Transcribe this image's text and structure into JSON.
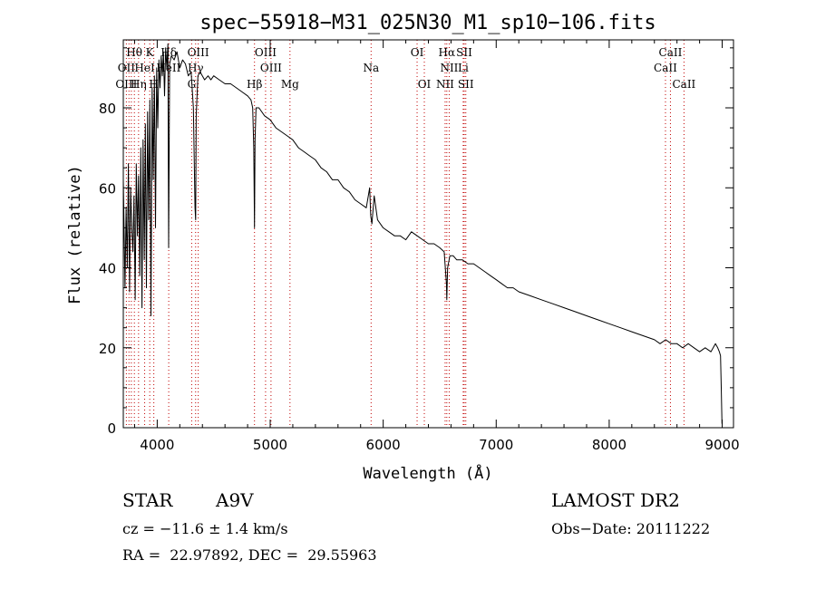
{
  "chart_data": {
    "type": "line",
    "title": "spec−55918−M31_025N30_M1_sp10−106.fits",
    "xlabel": "Wavelength (Å)",
    "ylabel": "Flux (relative)",
    "xlim": [
      3700,
      9100
    ],
    "ylim": [
      0,
      97
    ],
    "xticks": [
      4000,
      5000,
      6000,
      7000,
      8000,
      9000
    ],
    "yticks": [
      0,
      20,
      40,
      60,
      80
    ],
    "grid": false,
    "series": [
      {
        "line_color": "#000000",
        "x": [
          3700,
          3715,
          3725,
          3735,
          3745,
          3755,
          3765,
          3775,
          3785,
          3795,
          3805,
          3815,
          3825,
          3835,
          3845,
          3855,
          3865,
          3875,
          3885,
          3895,
          3905,
          3915,
          3925,
          3935,
          3945,
          3955,
          3965,
          3975,
          3985,
          3995,
          4005,
          4015,
          4025,
          4035,
          4045,
          4055,
          4065,
          4075,
          4085,
          4095,
          4101,
          4110,
          4125,
          4150,
          4175,
          4200,
          4225,
          4250,
          4275,
          4300,
          4320,
          4335,
          4340,
          4345,
          4360,
          4380,
          4400,
          4420,
          4450,
          4475,
          4500,
          4550,
          4600,
          4650,
          4700,
          4750,
          4800,
          4830,
          4845,
          4855,
          4861,
          4866,
          4875,
          4900,
          4950,
          5000,
          5050,
          5100,
          5150,
          5200,
          5250,
          5300,
          5350,
          5400,
          5450,
          5500,
          5550,
          5600,
          5650,
          5700,
          5750,
          5800,
          5850,
          5880,
          5890,
          5900,
          5920,
          5950,
          6000,
          6050,
          6100,
          6150,
          6200,
          6250,
          6300,
          6350,
          6400,
          6450,
          6500,
          6540,
          6560,
          6563,
          6570,
          6590,
          6620,
          6650,
          6700,
          6750,
          6800,
          6850,
          6900,
          6950,
          7000,
          7050,
          7100,
          7150,
          7200,
          7300,
          7400,
          7500,
          7600,
          7700,
          7800,
          7900,
          8000,
          8100,
          8200,
          8300,
          8400,
          8450,
          8500,
          8550,
          8600,
          8650,
          8700,
          8750,
          8800,
          8850,
          8900,
          8940,
          8960,
          8975,
          8985,
          8992,
          8998
        ],
        "y": [
          62,
          35,
          55,
          40,
          66,
          34,
          60,
          50,
          44,
          58,
          32,
          66,
          48,
          63,
          38,
          70,
          30,
          72,
          42,
          76,
          35,
          79,
          52,
          82,
          28,
          85,
          62,
          88,
          50,
          90,
          75,
          92,
          85,
          93,
          88,
          94,
          83,
          95,
          90,
          96,
          45,
          91,
          93,
          92,
          94,
          90,
          92,
          91,
          88,
          89,
          80,
          55,
          52,
          78,
          88,
          89,
          88,
          87,
          88,
          87,
          88,
          87,
          86,
          86,
          85,
          84,
          83,
          82,
          80,
          70,
          50,
          72,
          80,
          80,
          78,
          77,
          75,
          74,
          73,
          72,
          70,
          69,
          68,
          67,
          65,
          64,
          62,
          62,
          60,
          59,
          57,
          56,
          55,
          60,
          53,
          51,
          58,
          52,
          50,
          49,
          48,
          48,
          47,
          49,
          48,
          47,
          46,
          46,
          45,
          44,
          36,
          32,
          40,
          43,
          43,
          42,
          42,
          41,
          41,
          40,
          39,
          38,
          37,
          36,
          35,
          35,
          34,
          33,
          32,
          31,
          30,
          29,
          28,
          27,
          26,
          25,
          24,
          23,
          22,
          21,
          22,
          21,
          21,
          20,
          21,
          20,
          19,
          20,
          19,
          21,
          20,
          19,
          18,
          10,
          1
        ]
      }
    ],
    "annotations": [
      {
        "text": "Hθ",
        "x": 3797,
        "row": 1
      },
      {
        "text": "K",
        "x": 3934,
        "row": 1
      },
      {
        "text": "Hδ",
        "x": 4102,
        "row": 1
      },
      {
        "text": "OIII",
        "x": 4363,
        "row": 1
      },
      {
        "text": "OIII",
        "x": 4959,
        "row": 1
      },
      {
        "text": "OI",
        "x": 6300,
        "row": 1
      },
      {
        "text": "Hα",
        "x": 6563,
        "row": 1
      },
      {
        "text": "SII",
        "x": 6717,
        "row": 1
      },
      {
        "text": "CaII",
        "x": 8542,
        "row": 1
      },
      {
        "text": "OII",
        "x": 3727,
        "row": 2
      },
      {
        "text": "HeI",
        "x": 3889,
        "row": 2
      },
      {
        "text": "HeII",
        "x": 4100,
        "row": 2
      },
      {
        "text": "Hγ",
        "x": 4340,
        "row": 2
      },
      {
        "text": "OIII",
        "x": 5007,
        "row": 2
      },
      {
        "text": "Na",
        "x": 5893,
        "row": 2
      },
      {
        "text": "NII",
        "x": 6584,
        "row": 2
      },
      {
        "text": "Li",
        "x": 6708,
        "row": 2
      },
      {
        "text": "CaII",
        "x": 8498,
        "row": 2
      },
      {
        "text": "OIII",
        "x": 3727,
        "row": 3
      },
      {
        "text": "Hη",
        "x": 3835,
        "row": 3
      },
      {
        "text": "H",
        "x": 3970,
        "row": 3
      },
      {
        "text": "G",
        "x": 4305,
        "row": 3
      },
      {
        "text": "Hβ",
        "x": 4861,
        "row": 3
      },
      {
        "text": "Mg",
        "x": 5175,
        "row": 3
      },
      {
        "text": "OI",
        "x": 6364,
        "row": 3
      },
      {
        "text": "NII",
        "x": 6548,
        "row": 3
      },
      {
        "text": "SII",
        "x": 6731,
        "row": 3
      },
      {
        "text": "CaII",
        "x": 8662,
        "row": 3
      }
    ],
    "line_marks": [
      3727,
      3750,
      3771,
      3798,
      3835,
      3889,
      3934,
      3970,
      4102,
      4305,
      4340,
      4363,
      4861,
      4959,
      5007,
      5175,
      5893,
      6300,
      6364,
      6548,
      6563,
      6584,
      6708,
      6717,
      6731,
      8498,
      8542,
      8662
    ],
    "line_mark_color": "#c00000"
  },
  "info": {
    "object_type": "STAR",
    "subclass": "A9V",
    "survey": "LAMOST DR2",
    "redshift_text": "cz = −11.6 ± 1.4 km/s",
    "obs_date_text": "Obs−Date: 20111222",
    "coords_text": "RA =  22.97892, DEC =  29.55963"
  }
}
